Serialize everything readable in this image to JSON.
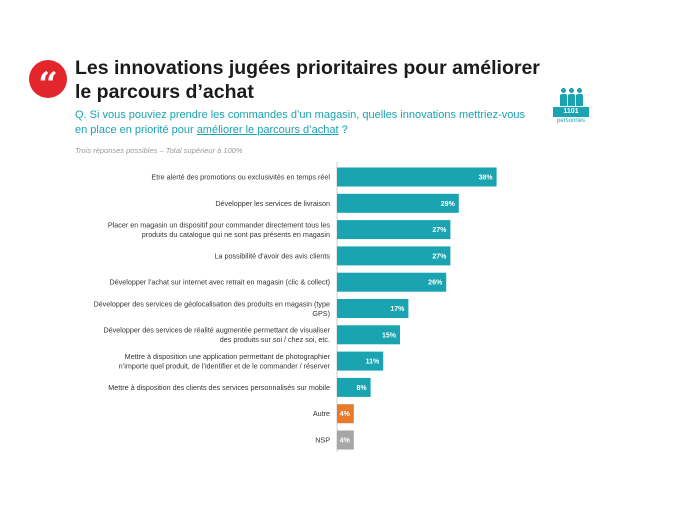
{
  "header": {
    "quote_glyph": "“",
    "title": "Les innovations jugées prioritaires pour améliorer le parcours d’achat",
    "question_start": "Q. Si vous pouviez prendre les commandes d’un magasin, quelles innovations mettriez-vous en place en priorité pour ",
    "question_underlined": "améliorer le parcours d’achat",
    "question_end": " ?",
    "note": "Trois réponses possibles – Total supérieur à 100%"
  },
  "panel": {
    "count": "1101",
    "label": "personnes",
    "icon": "people-icon"
  },
  "colors": {
    "teal": "#1aa3b0",
    "orange": "#e87a2c",
    "grey": "#a6a6a6",
    "title_red": "#e2262c"
  },
  "chart_data": {
    "type": "bar",
    "orientation": "horizontal",
    "title": "Les innovations jugées prioritaires pour améliorer le parcours d’achat",
    "value_unit": "%",
    "xlim": [
      0,
      100
    ],
    "grid": false,
    "categories": [
      [
        "Etre alerté des promotions ou exclusivités en temps réel"
      ],
      [
        "Développer les services de livraison"
      ],
      [
        "Placer en magasin un dispositif pour commander directement tous les",
        "produits du catalogue qui ne sont pas présents en magasin"
      ],
      [
        "La possibilité d’avoir des avis clients"
      ],
      [
        "Développer l’achat sur internet avec retrait en magasin (clic & collect)"
      ],
      [
        "Développer des services de géolocalisation des produits en magasin (type",
        "GPS)"
      ],
      [
        "Développer des services de réalité augmentée permettant de visualiser",
        "des produits sur soi / chez soi, etc."
      ],
      [
        "Mettre à disposition une application permettant de photographier",
        "n’importe quel produit, de l’identifier et de le commander / réserver"
      ],
      [
        "Mettre à disposition des clients des services personnalisés sur mobile"
      ],
      [
        "Autre"
      ],
      [
        "NSP"
      ]
    ],
    "values": [
      38,
      29,
      27,
      27,
      26,
      17,
      15,
      11,
      8,
      4,
      4
    ],
    "value_labels": [
      "38%",
      "29%",
      "27%",
      "27%",
      "26%",
      "17%",
      "15%",
      "11%",
      "8%",
      "4%",
      "4%"
    ],
    "bar_colors": [
      "#1aa3b0",
      "#1aa3b0",
      "#1aa3b0",
      "#1aa3b0",
      "#1aa3b0",
      "#1aa3b0",
      "#1aa3b0",
      "#1aa3b0",
      "#1aa3b0",
      "#e87a2c",
      "#a6a6a6"
    ]
  }
}
